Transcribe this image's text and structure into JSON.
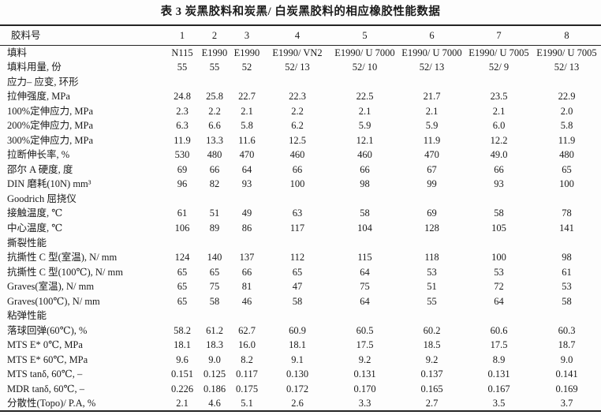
{
  "title": "表 3  炭黑胶料和炭黑/ 白炭黑胶料的相应橡胶性能数据",
  "table": {
    "header": {
      "label": "胶料号",
      "columns": [
        "1",
        "2",
        "3",
        "4",
        "5",
        "6",
        "7",
        "8"
      ]
    },
    "rows": [
      {
        "label": "填料",
        "section": false,
        "values": [
          "N115",
          "E1990",
          "E1990",
          "E1990/ VN2",
          "E1990/ U 7000",
          "E1990/ U 7000",
          "E1990/ U 7005",
          "E1990/ U 7005"
        ]
      },
      {
        "label": "填料用量, 份",
        "section": false,
        "values": [
          "55",
          "55",
          "52",
          "52/ 13",
          "52/ 10",
          "52/ 13",
          "52/ 9",
          "52/ 13"
        ]
      },
      {
        "label": "应力– 应变, 环形",
        "section": true,
        "values": [
          "",
          "",
          "",
          "",
          "",
          "",
          "",
          ""
        ]
      },
      {
        "label": "拉伸强度, MPa",
        "section": false,
        "values": [
          "24.8",
          "25.8",
          "22.7",
          "22.3",
          "22.5",
          "21.7",
          "23.5",
          "22.9"
        ]
      },
      {
        "label": "100%定伸应力, MPa",
        "section": false,
        "values": [
          "2.3",
          "2.2",
          "2.1",
          "2.2",
          "2.1",
          "2.1",
          "2.1",
          "2.0"
        ]
      },
      {
        "label": "200%定伸应力, MPa",
        "section": false,
        "values": [
          "6.3",
          "6.6",
          "5.8",
          "6.2",
          "5.9",
          "5.9",
          "6.0",
          "5.8"
        ]
      },
      {
        "label": "300%定伸应力, MPa",
        "section": false,
        "values": [
          "11.9",
          "13.3",
          "11.6",
          "12.5",
          "12.1",
          "11.9",
          "12.2",
          "11.9"
        ]
      },
      {
        "label": "拉断伸长率, %",
        "section": false,
        "values": [
          "530",
          "480",
          "470",
          "460",
          "460",
          "470",
          "49.0",
          "480"
        ]
      },
      {
        "label": "邵尔 A 硬度, 度",
        "section": false,
        "values": [
          "69",
          "66",
          "64",
          "66",
          "66",
          "67",
          "66",
          "65"
        ]
      },
      {
        "label": "DIN 磨耗(10N) mm³",
        "section": false,
        "values": [
          "96",
          "82",
          "93",
          "100",
          "98",
          "99",
          "93",
          "100"
        ]
      },
      {
        "label": "Goodrich 屈挠仪",
        "section": true,
        "values": [
          "",
          "",
          "",
          "",
          "",
          "",
          "",
          ""
        ]
      },
      {
        "label": "接触温度, ℃",
        "section": false,
        "values": [
          "61",
          "51",
          "49",
          "63",
          "58",
          "69",
          "58",
          "78"
        ]
      },
      {
        "label": "中心温度, ℃",
        "section": false,
        "values": [
          "106",
          "89",
          "86",
          "117",
          "104",
          "128",
          "105",
          "141"
        ]
      },
      {
        "label": "撕裂性能",
        "section": true,
        "values": [
          "",
          "",
          "",
          "",
          "",
          "",
          "",
          ""
        ]
      },
      {
        "label": "抗撕性 C 型(室温), N/ mm",
        "section": false,
        "values": [
          "124",
          "140",
          "137",
          "112",
          "115",
          "118",
          "100",
          "98"
        ]
      },
      {
        "label": "抗撕性 C 型(100℃), N/ mm",
        "section": false,
        "values": [
          "65",
          "65",
          "66",
          "65",
          "64",
          "53",
          "53",
          "61"
        ]
      },
      {
        "label": "Graves(室温), N/ mm",
        "section": false,
        "values": [
          "65",
          "75",
          "81",
          "47",
          "75",
          "51",
          "72",
          "53"
        ]
      },
      {
        "label": "Graves(100℃), N/ mm",
        "section": false,
        "values": [
          "65",
          "58",
          "46",
          "58",
          "64",
          "55",
          "64",
          "58"
        ]
      },
      {
        "label": "粘弹性能",
        "section": true,
        "values": [
          "",
          "",
          "",
          "",
          "",
          "",
          "",
          ""
        ]
      },
      {
        "label": "落球回弹(60℃), %",
        "section": false,
        "values": [
          "58.2",
          "61.2",
          "62.7",
          "60.9",
          "60.5",
          "60.2",
          "60.6",
          "60.3"
        ]
      },
      {
        "label": "MTS E* 0℃, MPa",
        "section": false,
        "values": [
          "18.1",
          "18.3",
          "16.0",
          "18.1",
          "17.5",
          "18.5",
          "17.5",
          "18.7"
        ]
      },
      {
        "label": "MTS E* 60℃, MPa",
        "section": false,
        "values": [
          "9.6",
          "9.0",
          "8.2",
          "9.1",
          "9.2",
          "9.2",
          "8.9",
          "9.0"
        ]
      },
      {
        "label": "MTS tanδ, 60℃, –",
        "section": false,
        "values": [
          "0.151",
          "0.125",
          "0.117",
          "0.130",
          "0.131",
          "0.137",
          "0.131",
          "0.141"
        ]
      },
      {
        "label": "MDR tanδ, 60℃, –",
        "section": false,
        "values": [
          "0.226",
          "0.186",
          "0.175",
          "0.172",
          "0.170",
          "0.165",
          "0.167",
          "0.169"
        ]
      },
      {
        "label": "分散性(Topo)/ P.A, %",
        "section": false,
        "values": [
          "2.1",
          "4.6",
          "5.1",
          "2.6",
          "3.3",
          "2.7",
          "3.5",
          "3.7"
        ]
      }
    ]
  }
}
